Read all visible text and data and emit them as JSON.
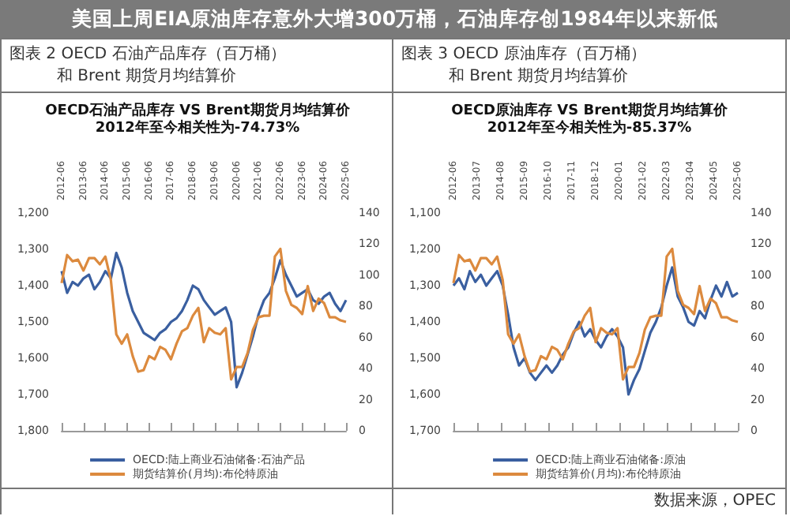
{
  "chart_data": [
    {
      "type": "line",
      "title": "OECD石油产品库存 VS Brent期货月均结算价",
      "subtitle": "2012年至今相关性为-74.73%",
      "annotations": [
        "美国上周EIA原油库存意外大增300万桶，石油库存创1984年以来新低",
        "图表 2 OECD 石油产品库存（百万桶）",
        "和 Brent 期货月均结算价"
      ],
      "x": [
        "2012-06",
        "2012-09",
        "2012-12",
        "2013-03",
        "2013-06",
        "2013-09",
        "2013-12",
        "2014-03",
        "2014-06",
        "2014-09",
        "2014-12",
        "2015-03",
        "2015-06",
        "2015-09",
        "2015-12",
        "2016-03",
        "2016-06",
        "2016-09",
        "2016-12",
        "2017-03",
        "2017-06",
        "2017-09",
        "2017-12",
        "2018-03",
        "2018-06",
        "2018-09",
        "2018-12",
        "2019-03",
        "2019-06",
        "2019-09",
        "2019-12",
        "2020-03",
        "2020-06",
        "2020-09",
        "2020-12",
        "2021-03",
        "2021-06",
        "2021-09",
        "2021-12",
        "2022-03",
        "2022-06",
        "2022-09",
        "2022-12",
        "2023-03",
        "2023-06",
        "2023-09",
        "2023-12",
        "2024-03",
        "2024-06",
        "2024-09",
        "2024-12",
        "2025-03",
        "2025-06"
      ],
      "series": [
        {
          "name": "OECD:陆上商业石油储备:石油产品",
          "color": "#3a5fa0",
          "values": [
            1360,
            1420,
            1390,
            1400,
            1380,
            1370,
            1410,
            1390,
            1360,
            1380,
            1310,
            1350,
            1420,
            1470,
            1500,
            1530,
            1540,
            1550,
            1530,
            1520,
            1500,
            1490,
            1470,
            1440,
            1400,
            1410,
            1440,
            1460,
            1480,
            1470,
            1460,
            1500,
            1680,
            1640,
            1590,
            1540,
            1480,
            1440,
            1420,
            1380,
            1330,
            1370,
            1400,
            1430,
            1420,
            1410,
            1440,
            1450,
            1430,
            1420,
            1450,
            1470,
            1440
          ]
        },
        {
          "name": "期货结算价(月均):布伦特原油",
          "color": "#dc8a3e",
          "axis": "y2",
          "values": [
            95,
            113,
            109,
            110,
            103,
            111,
            111,
            107,
            112,
            97,
            62,
            56,
            62,
            48,
            38,
            39,
            48,
            46,
            54,
            52,
            46,
            56,
            64,
            66,
            74,
            79,
            57,
            66,
            63,
            62,
            66,
            33,
            41,
            41,
            50,
            65,
            73,
            74,
            74,
            112,
            117,
            90,
            81,
            79,
            75,
            93,
            77,
            85,
            82,
            73,
            73,
            71,
            70
          ]
        }
      ],
      "xlim": [
        "2012-06",
        "2025-06"
      ],
      "xticks": [
        "2012-06",
        "2013-06",
        "2014-06",
        "2015-06",
        "2016-06",
        "2017-06",
        "2018-06",
        "2019-06",
        "2020-06",
        "2021-06",
        "2022-06",
        "2023-06",
        "2024-06",
        "2025-06"
      ],
      "ylim": [
        1800,
        1200
      ],
      "yticks": [
        {
          "value": 1200,
          "label": "1,200"
        },
        {
          "value": 1300,
          "label": "1,300"
        },
        {
          "value": 1400,
          "label": "1,400"
        },
        {
          "value": 1500,
          "label": "1,500"
        },
        {
          "value": 1600,
          "label": "1,600"
        },
        {
          "value": 1700,
          "label": "1,700"
        },
        {
          "value": 1800,
          "label": "1,800"
        }
      ],
      "y2lim": [
        0,
        140
      ],
      "y2ticks": [
        0,
        20,
        40,
        60,
        80,
        100,
        120,
        140
      ],
      "legend": "bottom",
      "marker": "none",
      "line_style": "solid"
    },
    {
      "type": "line",
      "title": "OECD原油库存 VS Brent期货月均结算价",
      "subtitle": "2012年至今相关性为-85.37%",
      "annotations": [
        "图表 3 OECD 原油库存（百万桶）",
        "和 Brent 期货月均结算价",
        "数据来源，OPEC"
      ],
      "x": [
        "2012-06",
        "2012-09",
        "2012-12",
        "2013-03",
        "2013-06",
        "2013-09",
        "2013-12",
        "2014-03",
        "2014-06",
        "2014-09",
        "2014-12",
        "2015-03",
        "2015-06",
        "2015-09",
        "2015-12",
        "2016-03",
        "2016-06",
        "2016-09",
        "2016-12",
        "2017-03",
        "2017-06",
        "2017-09",
        "2017-12",
        "2018-03",
        "2018-06",
        "2018-09",
        "2018-12",
        "2019-03",
        "2019-06",
        "2019-09",
        "2019-12",
        "2020-03",
        "2020-06",
        "2020-09",
        "2020-12",
        "2021-03",
        "2021-06",
        "2021-09",
        "2021-12",
        "2022-03",
        "2022-06",
        "2022-09",
        "2022-12",
        "2023-03",
        "2023-06",
        "2023-09",
        "2023-12",
        "2024-03",
        "2024-06",
        "2024-09",
        "2024-12",
        "2025-03",
        "2025-06"
      ],
      "series": [
        {
          "name": "OECD:陆上商业石油储备:原油",
          "color": "#3a5fa0",
          "values": [
            1300,
            1280,
            1310,
            1260,
            1290,
            1270,
            1300,
            1280,
            1260,
            1300,
            1380,
            1470,
            1520,
            1500,
            1540,
            1560,
            1540,
            1520,
            1540,
            1520,
            1490,
            1470,
            1430,
            1400,
            1440,
            1420,
            1450,
            1470,
            1440,
            1420,
            1440,
            1470,
            1600,
            1560,
            1530,
            1480,
            1430,
            1400,
            1360,
            1300,
            1250,
            1330,
            1360,
            1400,
            1410,
            1370,
            1390,
            1340,
            1300,
            1330,
            1290,
            1330,
            1320
          ]
        },
        {
          "name": "期货结算价(月均):布伦特原油",
          "color": "#dc8a3e",
          "axis": "y2",
          "values": [
            95,
            113,
            109,
            110,
            103,
            111,
            111,
            107,
            112,
            97,
            62,
            56,
            62,
            48,
            38,
            39,
            48,
            46,
            54,
            52,
            46,
            56,
            64,
            66,
            74,
            79,
            57,
            66,
            63,
            62,
            66,
            33,
            41,
            41,
            50,
            65,
            73,
            74,
            74,
            112,
            117,
            90,
            81,
            79,
            75,
            93,
            77,
            85,
            82,
            73,
            73,
            71,
            70
          ]
        }
      ],
      "xlim": [
        "2012-06",
        "2025-06"
      ],
      "xticks": [
        "2012-06",
        "2013-07",
        "2014-08",
        "2015-09",
        "2016-10",
        "2017-11",
        "2018-12",
        "2020-01",
        "2021-02",
        "2022-03",
        "2023-04",
        "2024-05",
        "2025-06"
      ],
      "ylim": [
        1700,
        1100
      ],
      "yticks": [
        {
          "value": 1100,
          "label": "1,100"
        },
        {
          "value": 1200,
          "label": "1,200"
        },
        {
          "value": 1300,
          "label": "1,300"
        },
        {
          "value": 1400,
          "label": "1,400"
        },
        {
          "value": 1500,
          "label": "1,500"
        },
        {
          "value": 1600,
          "label": "1,600"
        },
        {
          "value": 1700,
          "label": "1,700"
        }
      ],
      "y2lim": [
        0,
        140
      ],
      "y2ticks": [
        0,
        20,
        40,
        60,
        80,
        100,
        120,
        140
      ],
      "legend": "bottom",
      "marker": "none",
      "line_style": "solid"
    }
  ]
}
